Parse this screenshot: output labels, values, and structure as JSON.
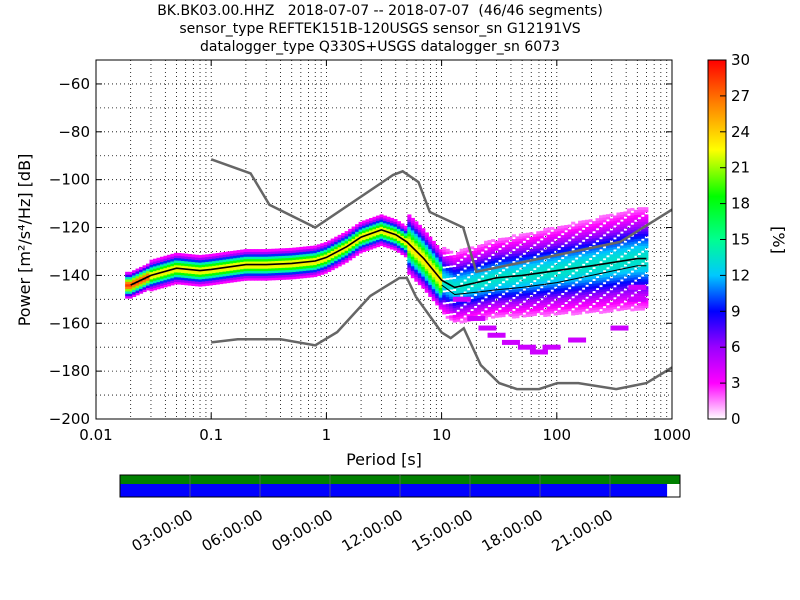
{
  "title_lines": [
    "BK.BK03.00.HHZ   2018-07-07 -- 2018-07-07  (46/46 segments)",
    "sensor_type REFTEK151B-120USGS sensor_sn G12191VS",
    "datalogger_type Q330S+USGS datalogger_sn 6073"
  ],
  "chart_data": {
    "type": "heatmap",
    "xlabel": "Period [s]",
    "ylabel": "Power [m²/s⁴/Hz] [dB]",
    "x_scale": "log",
    "xlim": [
      0.01,
      1000
    ],
    "ylim": [
      -200,
      -50
    ],
    "x_ticks": [
      "0.01",
      "0.1",
      "1",
      "10",
      "100",
      "1000"
    ],
    "y_ticks": [
      "−60",
      "−80",
      "−100",
      "−120",
      "−140",
      "−160",
      "−180",
      "−200"
    ],
    "grid": "dotted",
    "colorbar": {
      "label": "[%]",
      "range": [
        0,
        30
      ],
      "ticks": [
        "0",
        "3",
        "6",
        "9",
        "12",
        "15",
        "18",
        "21",
        "24",
        "27",
        "30"
      ],
      "colormap": "pqlx"
    },
    "noise_models": [
      {
        "name": "high",
        "x": [
          0.1,
          0.22,
          0.32,
          0.8,
          3.8,
          4.6,
          6.3,
          7.9,
          15.4,
          20,
          354.8,
          1000
        ],
        "y": [
          -91.5,
          -97.4,
          -110.5,
          -120,
          -98,
          -96.5,
          -101,
          -113.5,
          -120,
          -138.5,
          -126,
          -112.5
        ]
      },
      {
        "name": "low",
        "x": [
          0.1,
          0.17,
          0.4,
          0.8,
          1.24,
          2.4,
          4.3,
          5,
          6,
          10,
          12,
          15.6,
          21.9,
          31.6,
          45,
          70,
          101,
          154,
          328,
          600,
          1000
        ],
        "y": [
          -168,
          -166.7,
          -166.7,
          -169.2,
          -163.7,
          -148.6,
          -141.1,
          -141.1,
          -149,
          -163.8,
          -166.2,
          -162.1,
          -177.5,
          -185,
          -187.5,
          -187.5,
          -185,
          -185,
          -187.5,
          -185,
          -178.5
        ]
      }
    ],
    "mean_curve": {
      "x": [
        0.02,
        0.03,
        0.05,
        0.08,
        0.1,
        0.2,
        0.3,
        0.5,
        0.8,
        1,
        1.5,
        2,
        3,
        4,
        5,
        7,
        10,
        13,
        20,
        30,
        50,
        100,
        200,
        500,
        600
      ],
      "y": [
        -144,
        -140,
        -137,
        -138,
        -137.5,
        -135.5,
        -135.5,
        -135,
        -134,
        -132.5,
        -128,
        -124,
        -121,
        -123,
        -126,
        -133,
        -142,
        -145,
        -143,
        -141,
        -140,
        -138,
        -136,
        -133,
        -133
      ]
    },
    "percentile_curve": {
      "x": [
        10,
        13,
        20,
        30,
        50,
        100,
        200,
        500,
        600
      ],
      "y": [
        -144,
        -148,
        -147,
        -146,
        -145,
        -143,
        -140,
        -136,
        -136
      ]
    },
    "scatter_points": [
      {
        "x": 15,
        "y": -150
      },
      {
        "x": 20,
        "y": -158
      },
      {
        "x": 25,
        "y": -162
      },
      {
        "x": 30,
        "y": -165
      },
      {
        "x": 40,
        "y": -168
      },
      {
        "x": 55,
        "y": -170
      },
      {
        "x": 70,
        "y": -172
      },
      {
        "x": 90,
        "y": -170
      },
      {
        "x": 150,
        "y": -167
      },
      {
        "x": 350,
        "y": -162
      },
      {
        "x": 500,
        "y": -145
      },
      {
        "x": 500,
        "y": -150
      }
    ],
    "timeline": {
      "ticks": [
        "03:00:00",
        "06:00:00",
        "09:00:00",
        "12:00:00",
        "15:00:00",
        "18:00:00",
        "21:00:00"
      ],
      "coverage": 0.977,
      "colors": {
        "top": "#008000",
        "bottom": "#0000ff"
      }
    }
  }
}
